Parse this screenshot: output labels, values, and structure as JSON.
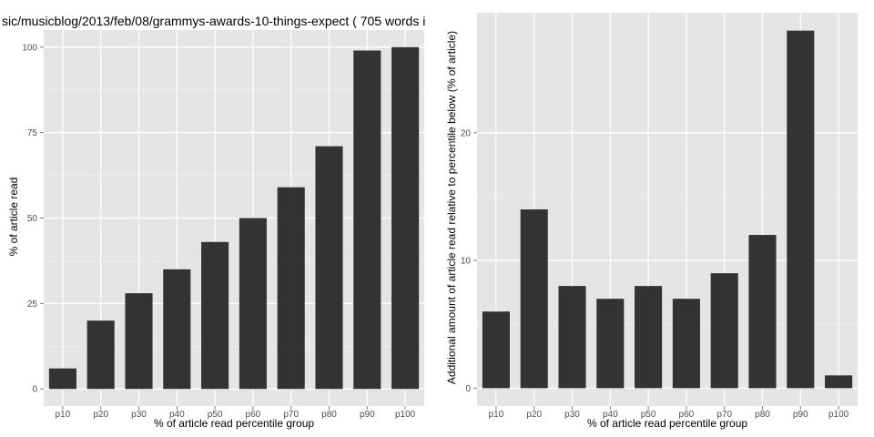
{
  "chart_data": [
    {
      "type": "bar",
      "title": "sic/musicblog/2013/feb/08/grammys-awards-10-things-expect ( 705 words i",
      "xlabel": "% of article read percentile group",
      "ylabel": "% of article read",
      "categories": [
        "p10",
        "p20",
        "p30",
        "p40",
        "p50",
        "p60",
        "p70",
        "p80",
        "p90",
        "p100"
      ],
      "values": [
        6,
        20,
        28,
        35,
        43,
        50,
        59,
        71,
        99,
        100
      ],
      "ylim": [
        -5,
        105
      ],
      "yticks": [
        0,
        25,
        50,
        75,
        100
      ],
      "grid": true,
      "colors": {
        "bar": "#333333",
        "panel": "#e5e5e5",
        "grid_major": "#ffffff",
        "grid_minor": "#f2f2f2"
      }
    },
    {
      "type": "bar",
      "title": "",
      "xlabel": "% of article read percentile group",
      "ylabel": "Additional amount of article read relative to percentile below (% of article)",
      "categories": [
        "p10",
        "p20",
        "p30",
        "p40",
        "p50",
        "p60",
        "p70",
        "p80",
        "p90",
        "p100"
      ],
      "values": [
        6,
        14,
        8,
        7,
        8,
        7,
        9,
        12,
        28,
        1
      ],
      "ylim": [
        -1.4,
        29.4
      ],
      "yticks": [
        0,
        10,
        20
      ],
      "grid": true,
      "colors": {
        "bar": "#333333",
        "panel": "#e5e5e5",
        "grid_major": "#ffffff",
        "grid_minor": "#f2f2f2"
      }
    }
  ]
}
